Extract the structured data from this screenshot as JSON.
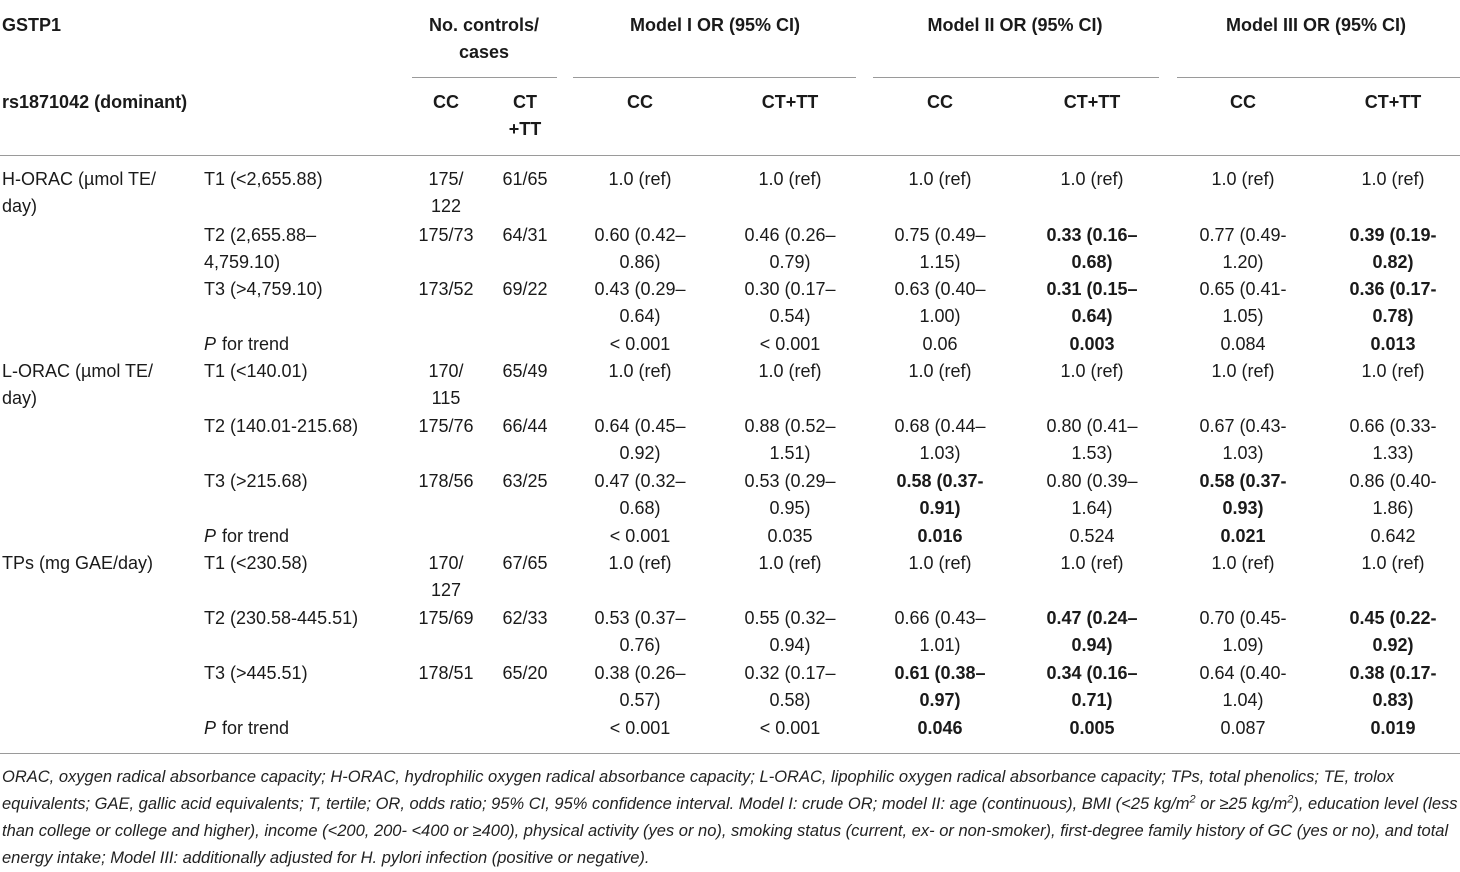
{
  "header": {
    "gene": "GSTP1",
    "snp": "rs1871042 (dominant)",
    "counts_title_line1": "No. controls/",
    "counts_title_line2": "cases",
    "model1_title": "Model I OR (95% CI)",
    "model2_title": "Model II OR (95% CI)",
    "model3_title": "Model III OR (95% CI)",
    "cc": "CC",
    "cttt": "CT+TT",
    "ct_line1": "CT",
    "ct_line2": "+TT"
  },
  "groups": [
    {
      "label_line1": "H-ORAC (µmol TE/",
      "label_line2": "day)",
      "rows": [
        {
          "tertile": [
            "T1 (<2,655.88)"
          ],
          "cc_count": [
            "175/",
            "122"
          ],
          "ct_count": [
            "61/65"
          ],
          "cells": [
            {
              "lines": [
                "1.0 (ref)"
              ],
              "bold": false
            },
            {
              "lines": [
                "1.0 (ref)"
              ],
              "bold": false
            },
            {
              "lines": [
                "1.0 (ref)"
              ],
              "bold": false
            },
            {
              "lines": [
                "1.0 (ref)"
              ],
              "bold": false
            },
            {
              "lines": [
                "1.0 (ref)"
              ],
              "bold": false
            },
            {
              "lines": [
                "1.0 (ref)"
              ],
              "bold": false
            }
          ]
        },
        {
          "tertile": [
            "T2 (2,655.88–",
            "4,759.10)"
          ],
          "cc_count": [
            "175/73"
          ],
          "ct_count": [
            "64/31"
          ],
          "cells": [
            {
              "lines": [
                "0.60 (0.42–",
                "0.86)"
              ],
              "bold": false
            },
            {
              "lines": [
                "0.46 (0.26–",
                "0.79)"
              ],
              "bold": false
            },
            {
              "lines": [
                "0.75 (0.49–",
                "1.15)"
              ],
              "bold": false
            },
            {
              "lines": [
                "0.33 (0.16–",
                "0.68)"
              ],
              "bold": true
            },
            {
              "lines": [
                "0.77 (0.49-",
                "1.20)"
              ],
              "bold": false
            },
            {
              "lines": [
                "0.39 (0.19-",
                "0.82)"
              ],
              "bold": true
            }
          ]
        },
        {
          "tertile": [
            "T3 (>4,759.10)"
          ],
          "cc_count": [
            "173/52"
          ],
          "ct_count": [
            "69/22"
          ],
          "cells": [
            {
              "lines": [
                "0.43 (0.29–",
                "0.64)"
              ],
              "bold": false
            },
            {
              "lines": [
                "0.30 (0.17–",
                "0.54)"
              ],
              "bold": false
            },
            {
              "lines": [
                "0.63 (0.40–",
                "1.00)"
              ],
              "bold": false
            },
            {
              "lines": [
                "0.31 (0.15–",
                "0.64)"
              ],
              "bold": true
            },
            {
              "lines": [
                "0.65 (0.41-",
                "1.05)"
              ],
              "bold": false
            },
            {
              "lines": [
                "0.36 (0.17-",
                "0.78)"
              ],
              "bold": true
            }
          ]
        },
        {
          "trend": true,
          "tertile": [
            "for trend"
          ],
          "cc_count": [],
          "ct_count": [],
          "cells": [
            {
              "lines": [
                "< 0.001"
              ],
              "bold": false
            },
            {
              "lines": [
                "< 0.001"
              ],
              "bold": false
            },
            {
              "lines": [
                "0.06"
              ],
              "bold": false
            },
            {
              "lines": [
                "0.003"
              ],
              "bold": true
            },
            {
              "lines": [
                "0.084"
              ],
              "bold": false
            },
            {
              "lines": [
                "0.013"
              ],
              "bold": true
            }
          ]
        }
      ]
    },
    {
      "label_line1": "L-ORAC (µmol TE/",
      "label_line2": "day)",
      "rows": [
        {
          "tertile": [
            "T1 (<140.01)"
          ],
          "cc_count": [
            "170/",
            "115"
          ],
          "ct_count": [
            "65/49"
          ],
          "cells": [
            {
              "lines": [
                "1.0 (ref)"
              ],
              "bold": false
            },
            {
              "lines": [
                "1.0 (ref)"
              ],
              "bold": false
            },
            {
              "lines": [
                "1.0 (ref)"
              ],
              "bold": false
            },
            {
              "lines": [
                "1.0 (ref)"
              ],
              "bold": false
            },
            {
              "lines": [
                "1.0 (ref)"
              ],
              "bold": false
            },
            {
              "lines": [
                "1.0 (ref)"
              ],
              "bold": false
            }
          ]
        },
        {
          "tertile": [
            "T2 (140.01-215.68)"
          ],
          "cc_count": [
            "175/76"
          ],
          "ct_count": [
            "66/44"
          ],
          "cells": [
            {
              "lines": [
                "0.64 (0.45–",
                "0.92)"
              ],
              "bold": false
            },
            {
              "lines": [
                "0.88 (0.52–",
                "1.51)"
              ],
              "bold": false
            },
            {
              "lines": [
                "0.68 (0.44–",
                "1.03)"
              ],
              "bold": false
            },
            {
              "lines": [
                "0.80 (0.41–",
                "1.53)"
              ],
              "bold": false
            },
            {
              "lines": [
                "0.67 (0.43-",
                "1.03)"
              ],
              "bold": false
            },
            {
              "lines": [
                "0.66 (0.33-",
                "1.33)"
              ],
              "bold": false
            }
          ]
        },
        {
          "tertile": [
            "T3 (>215.68)"
          ],
          "cc_count": [
            "178/56"
          ],
          "ct_count": [
            "63/25"
          ],
          "cells": [
            {
              "lines": [
                "0.47 (0.32–",
                "0.68)"
              ],
              "bold": false
            },
            {
              "lines": [
                "0.53 (0.29–",
                "0.95)"
              ],
              "bold": false
            },
            {
              "lines": [
                "0.58 (0.37-",
                "0.91)"
              ],
              "bold": true
            },
            {
              "lines": [
                "0.80 (0.39–",
                "1.64)"
              ],
              "bold": false
            },
            {
              "lines": [
                "0.58 (0.37-",
                "0.93)"
              ],
              "bold": true
            },
            {
              "lines": [
                "0.86 (0.40-",
                "1.86)"
              ],
              "bold": false
            }
          ]
        },
        {
          "trend": true,
          "tertile": [
            "for trend"
          ],
          "cc_count": [],
          "ct_count": [],
          "cells": [
            {
              "lines": [
                "< 0.001"
              ],
              "bold": false
            },
            {
              "lines": [
                "0.035"
              ],
              "bold": false
            },
            {
              "lines": [
                "0.016"
              ],
              "bold": true
            },
            {
              "lines": [
                "0.524"
              ],
              "bold": false
            },
            {
              "lines": [
                "0.021"
              ],
              "bold": true
            },
            {
              "lines": [
                "0.642"
              ],
              "bold": false
            }
          ]
        }
      ]
    },
    {
      "label_line1": "TPs (mg GAE/day)",
      "label_line2": "",
      "rows": [
        {
          "tertile": [
            "T1 (<230.58)"
          ],
          "cc_count": [
            "170/",
            "127"
          ],
          "ct_count": [
            "67/65"
          ],
          "cells": [
            {
              "lines": [
                "1.0 (ref)"
              ],
              "bold": false
            },
            {
              "lines": [
                "1.0 (ref)"
              ],
              "bold": false
            },
            {
              "lines": [
                "1.0 (ref)"
              ],
              "bold": false
            },
            {
              "lines": [
                "1.0 (ref)"
              ],
              "bold": false
            },
            {
              "lines": [
                "1.0 (ref)"
              ],
              "bold": false
            },
            {
              "lines": [
                "1.0 (ref)"
              ],
              "bold": false
            }
          ]
        },
        {
          "tertile": [
            "T2 (230.58-445.51)"
          ],
          "cc_count": [
            "175/69"
          ],
          "ct_count": [
            "62/33"
          ],
          "cells": [
            {
              "lines": [
                "0.53 (0.37–",
                "0.76)"
              ],
              "bold": false
            },
            {
              "lines": [
                "0.55 (0.32–",
                "0.94)"
              ],
              "bold": false
            },
            {
              "lines": [
                "0.66 (0.43–",
                "1.01)"
              ],
              "bold": false
            },
            {
              "lines": [
                "0.47 (0.24–",
                "0.94)"
              ],
              "bold": true
            },
            {
              "lines": [
                "0.70 (0.45-",
                "1.09)"
              ],
              "bold": false
            },
            {
              "lines": [
                "0.45 (0.22-",
                "0.92)"
              ],
              "bold": true
            }
          ]
        },
        {
          "tertile": [
            "T3 (>445.51)"
          ],
          "cc_count": [
            "178/51"
          ],
          "ct_count": [
            "65/20"
          ],
          "cells": [
            {
              "lines": [
                "0.38 (0.26–",
                "0.57)"
              ],
              "bold": false
            },
            {
              "lines": [
                "0.32 (0.17–",
                "0.58)"
              ],
              "bold": false
            },
            {
              "lines": [
                "0.61 (0.38–",
                "0.97)"
              ],
              "bold": true
            },
            {
              "lines": [
                "0.34 (0.16–",
                "0.71)"
              ],
              "bold": true
            },
            {
              "lines": [
                "0.64 (0.40-",
                "1.04)"
              ],
              "bold": false
            },
            {
              "lines": [
                "0.38 (0.17-",
                "0.83)"
              ],
              "bold": true
            }
          ]
        },
        {
          "trend": true,
          "tertile": [
            "for trend"
          ],
          "cc_count": [],
          "ct_count": [],
          "cells": [
            {
              "lines": [
                "< 0.001"
              ],
              "bold": false
            },
            {
              "lines": [
                "< 0.001"
              ],
              "bold": false
            },
            {
              "lines": [
                "0.046"
              ],
              "bold": true
            },
            {
              "lines": [
                "0.005"
              ],
              "bold": true
            },
            {
              "lines": [
                "0.087"
              ],
              "bold": false
            },
            {
              "lines": [
                "0.019"
              ],
              "bold": true
            }
          ]
        }
      ]
    }
  ],
  "trend_p": "P",
  "footnote": {
    "p1": "ORAC, oxygen radical absorbance capacity; H-ORAC, hydrophilic oxygen radical absorbance capacity; L-ORAC, lipophilic oxygen radical absorbance capacity; TPs, total phenolics; TE, trolox equivalents; GAE, gallic acid equivalents; T, tertile; OR, odds ratio; 95% CI, 95% confidence interval. Model I: crude OR; model II: age (continuous), BMI (<25 kg/m",
    "sup1": "2",
    "p2": " or ≥25 kg/m",
    "sup2": "2",
    "p3": "), education level (less than college or college and higher), income (<200, 200- <400 or ≥400), physical activity (yes or no), smoking status (current, ex- or non-smoker), first-degree family history of GC (yes or no), and total energy intake; Model III: additionally adjusted for H. pylori infection (positive or negative)."
  }
}
